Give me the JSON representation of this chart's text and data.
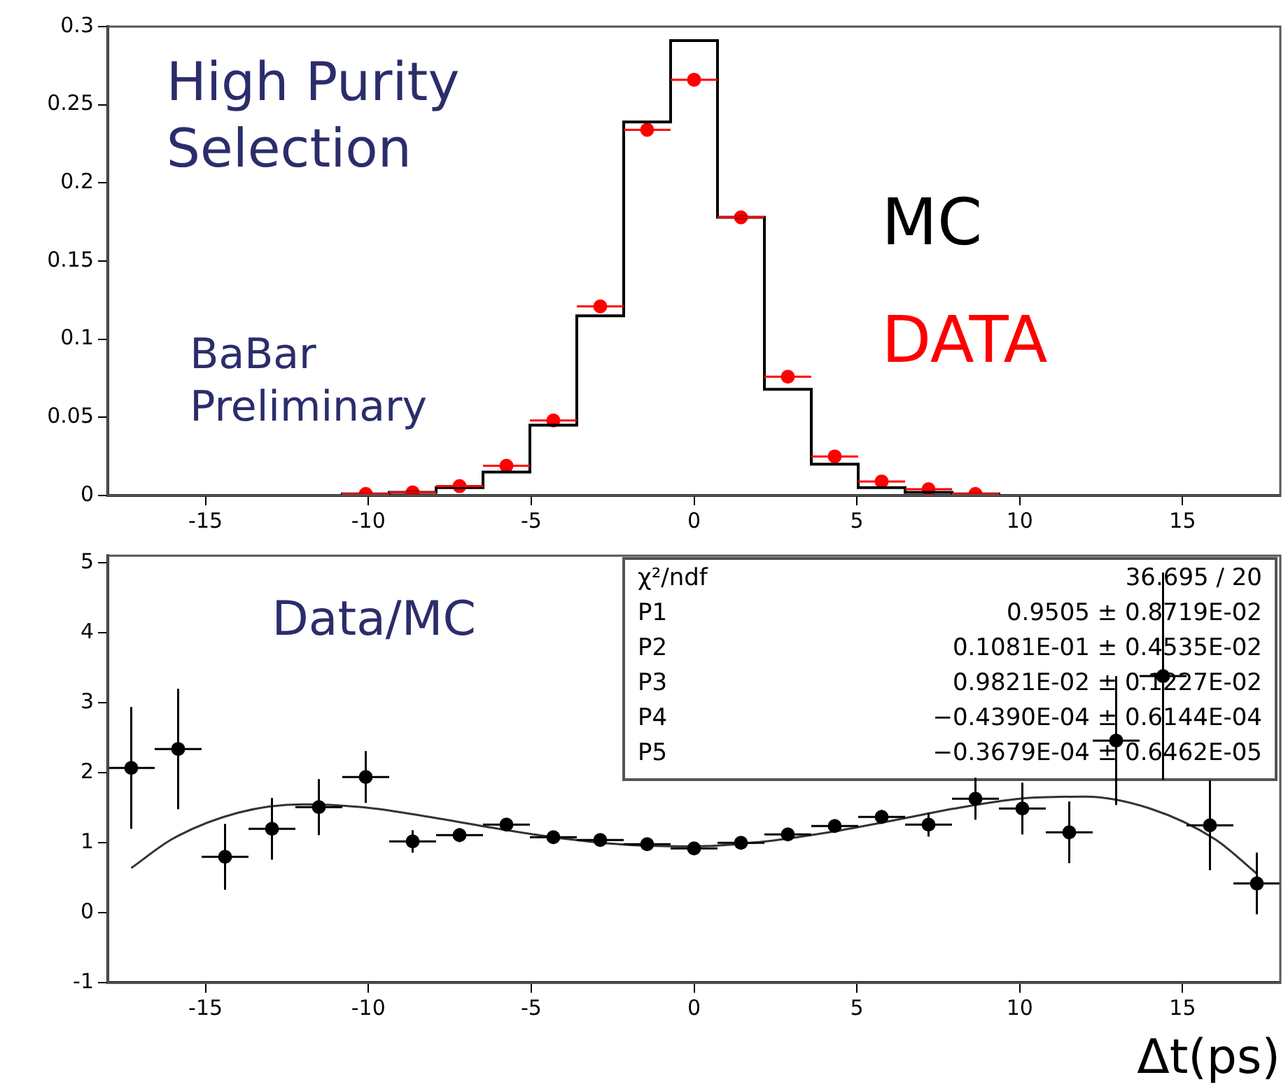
{
  "chart_data": [
    {
      "type": "histogram",
      "bins": [
        -18,
        -16.56,
        -15.12,
        -13.68,
        -12.24,
        -10.8,
        -9.36,
        -7.92,
        -6.48,
        -5.04,
        -3.6,
        -2.16,
        -0.72,
        0.72,
        2.16,
        3.6,
        5.04,
        6.48,
        7.92,
        9.36,
        10.8,
        12.24,
        13.68,
        15.12,
        16.56,
        18
      ],
      "series": [
        {
          "name": "MC",
          "color": "#000000",
          "values": [
            0,
            0,
            0,
            0,
            0,
            0.001,
            0.002,
            0.005,
            0.015,
            0.045,
            0.115,
            0.239,
            0.291,
            0.178,
            0.068,
            0.02,
            0.005,
            0.002,
            0.001,
            0,
            0,
            0,
            0,
            0,
            0
          ]
        },
        {
          "name": "DATA",
          "type": "scatter",
          "color": "#ff0000",
          "x": [
            -10.08,
            -8.64,
            -7.2,
            -5.76,
            -4.32,
            -2.88,
            -1.44,
            0,
            1.44,
            2.88,
            4.32,
            5.76,
            7.2,
            8.64
          ],
          "values": [
            0.001,
            0.002,
            0.006,
            0.019,
            0.048,
            0.121,
            0.234,
            0.266,
            0.178,
            0.076,
            0.025,
            0.009,
            0.004,
            0.001
          ],
          "xerrors": [
            0.72,
            0.72,
            0.72,
            0.72,
            0.72,
            0.72,
            0.72,
            0.72,
            0.72,
            0.72,
            0.72,
            0.72,
            0.72,
            0.72
          ]
        }
      ],
      "xlim": [
        -18,
        18
      ],
      "xticks": [
        -15,
        -10,
        -5,
        0,
        5,
        10,
        15
      ],
      "ylim": [
        0,
        0.3
      ],
      "yticks": [
        0,
        0.05,
        0.1,
        0.15,
        0.2,
        0.25,
        0.3
      ],
      "annotations": [
        "High Purity Selection",
        "BaBar Preliminary"
      ]
    },
    {
      "type": "scatter",
      "xlabel": "Δt(ps)",
      "series": [
        {
          "color": "#000000",
          "x": [
            -17.28,
            -15.84,
            -14.4,
            -12.96,
            -11.52,
            -10.08,
            -8.64,
            -7.2,
            -5.76,
            -4.32,
            -2.88,
            -1.44,
            0,
            1.44,
            2.88,
            4.32,
            5.76,
            7.2,
            8.64,
            10.08,
            11.52,
            12.96,
            14.4,
            15.84,
            17.28
          ],
          "values": [
            2.07,
            2.34,
            0.8,
            1.2,
            1.51,
            1.94,
            1.02,
            1.11,
            1.26,
            1.08,
            1.04,
            0.98,
            0.92,
            1.0,
            1.12,
            1.24,
            1.37,
            1.26,
            1.63,
            1.49,
            1.15,
            2.46,
            3.38,
            1.25,
            0.42
          ],
          "errors": [
            0.87,
            0.86,
            0.47,
            0.44,
            0.4,
            0.37,
            0.16,
            0.1,
            0.06,
            0.04,
            0.04,
            0.03,
            0.03,
            0.03,
            0.04,
            0.05,
            0.1,
            0.17,
            0.3,
            0.37,
            0.44,
            0.92,
            1.48,
            0.64,
            0.44
          ],
          "xerrors": [
            0.72,
            0.72,
            0.72,
            0.72,
            0.72,
            0.72,
            0.72,
            0.72,
            0.72,
            0.72,
            0.72,
            0.72,
            0.72,
            0.72,
            0.72,
            0.72,
            0.72,
            0.72,
            0.72,
            0.72,
            0.72,
            0.72,
            0.72,
            0.72,
            0.72
          ]
        },
        {
          "type": "line",
          "color": "#333333",
          "x": [
            -17.28,
            -16,
            -14,
            -12,
            -10,
            -8,
            -6,
            -4,
            -2,
            0,
            2,
            4,
            6,
            8,
            10,
            12,
            14,
            16,
            17.28
          ],
          "values": [
            0.64,
            1.06,
            1.43,
            1.55,
            1.5,
            1.36,
            1.2,
            1.06,
            0.97,
            0.95,
            1.01,
            1.14,
            1.31,
            1.49,
            1.63,
            1.66,
            1.49,
            1.05,
            0.56
          ]
        }
      ],
      "xlim": [
        -18,
        18
      ],
      "xticks": [
        -15,
        -10,
        -5,
        0,
        5,
        10,
        15
      ],
      "ylim": [
        -1,
        5.1
      ],
      "yticks": [
        -1,
        0,
        1,
        2,
        3,
        4,
        5
      ],
      "annotations": [
        "Data/MC",
        "χ²/ndf 36.695 / 20",
        "P1 0.9505 ± 0.8719E-02",
        "P2 0.1081E-01 ± 0.4535E-02",
        "P3 0.9821E-02 ± 0.1227E-02",
        "P4 −0.4390E-04 ± 0.6144E-04",
        "P5 −0.3679E-04 ± 0.6462E-05"
      ]
    }
  ]
}
